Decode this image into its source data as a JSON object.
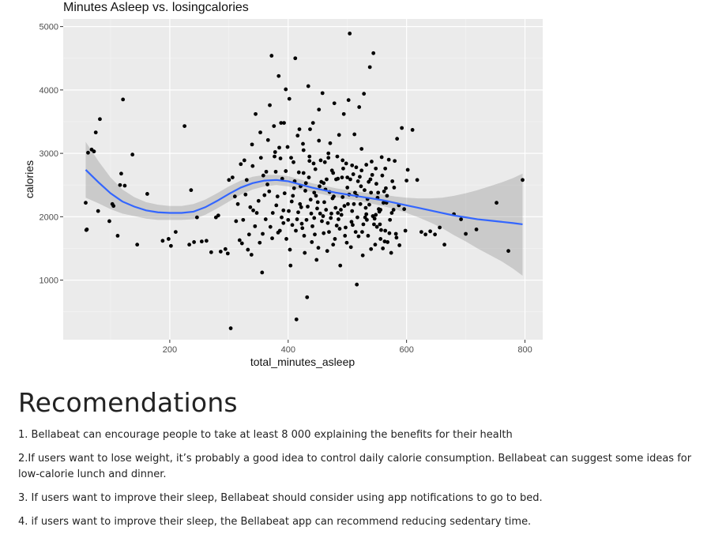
{
  "chart_data": {
    "type": "scatter",
    "title": "Minutes Asleep vs. losingcalories",
    "xlabel": "total_minutes_asleep",
    "ylabel": "calories",
    "xlim": [
      20,
      830
    ],
    "ylim": [
      60,
      5120
    ],
    "xticks": [
      200,
      400,
      600,
      800
    ],
    "yticks": [
      1000,
      2000,
      3000,
      4000,
      5000
    ],
    "grid": true,
    "background": "#ebebeb",
    "point_color": "#000000",
    "smooth_color": "#3366ff",
    "band_color": "#999999",
    "points": [
      [
        58,
        2220
      ],
      [
        59,
        1790
      ],
      [
        60,
        1800
      ],
      [
        62,
        3010
      ],
      [
        68,
        3060
      ],
      [
        72,
        3030
      ],
      [
        75,
        3330
      ],
      [
        79,
        2090
      ],
      [
        82,
        3540
      ],
      [
        98,
        1930
      ],
      [
        103,
        2200
      ],
      [
        105,
        2170
      ],
      [
        112,
        1700
      ],
      [
        116,
        2500
      ],
      [
        118,
        2680
      ],
      [
        121,
        3850
      ],
      [
        124,
        2490
      ],
      [
        137,
        2980
      ],
      [
        145,
        1560
      ],
      [
        162,
        2360
      ],
      [
        188,
        1620
      ],
      [
        198,
        1650
      ],
      [
        202,
        1540
      ],
      [
        210,
        1760
      ],
      [
        225,
        3430
      ],
      [
        233,
        1560
      ],
      [
        236,
        2420
      ],
      [
        241,
        1600
      ],
      [
        246,
        1990
      ],
      [
        254,
        1610
      ],
      [
        262,
        1620
      ],
      [
        270,
        1440
      ],
      [
        278,
        1990
      ],
      [
        282,
        2020
      ],
      [
        286,
        1450
      ],
      [
        294,
        1490
      ],
      [
        298,
        1420
      ],
      [
        300,
        2580
      ],
      [
        303,
        240
      ],
      [
        310,
        2320
      ],
      [
        318,
        1630
      ],
      [
        322,
        1580
      ],
      [
        326,
        2890
      ],
      [
        332,
        1480
      ],
      [
        334,
        1720
      ],
      [
        338,
        1400
      ],
      [
        341,
        2100
      ],
      [
        345,
        3620
      ],
      [
        352,
        1590
      ],
      [
        356,
        1120
      ],
      [
        360,
        2340
      ],
      [
        365,
        2510
      ],
      [
        369,
        3760
      ],
      [
        372,
        4540
      ],
      [
        376,
        3430
      ],
      [
        380,
        2180
      ],
      [
        384,
        4220
      ],
      [
        387,
        2920
      ],
      [
        390,
        2600
      ],
      [
        392,
        1900
      ],
      [
        396,
        4010
      ],
      [
        399,
        3100
      ],
      [
        401,
        2090
      ],
      [
        404,
        1230
      ],
      [
        407,
        1870
      ],
      [
        410,
        2450
      ],
      [
        412,
        4500
      ],
      [
        414,
        380
      ],
      [
        416,
        3280
      ],
      [
        418,
        2700
      ],
      [
        420,
        2200
      ],
      [
        423,
        1890
      ],
      [
        425,
        3150
      ],
      [
        428,
        1430
      ],
      [
        430,
        2530
      ],
      [
        432,
        730
      ],
      [
        434,
        4060
      ],
      [
        436,
        2950
      ],
      [
        438,
        2270
      ],
      [
        440,
        1600
      ],
      [
        442,
        3480
      ],
      [
        444,
        1980
      ],
      [
        446,
        2750
      ],
      [
        448,
        1320
      ],
      [
        450,
        2230
      ],
      [
        452,
        3690
      ],
      [
        454,
        2050
      ],
      [
        456,
        2550
      ],
      [
        458,
        3950
      ],
      [
        460,
        1740
      ],
      [
        462,
        2860
      ],
      [
        464,
        2110
      ],
      [
        466,
        1460
      ],
      [
        468,
        3000
      ],
      [
        470,
        2390
      ],
      [
        472,
        1980
      ],
      [
        474,
        2730
      ],
      [
        476,
        1560
      ],
      [
        478,
        3790
      ],
      [
        480,
        2140
      ],
      [
        482,
        1860
      ],
      [
        484,
        2600
      ],
      [
        486,
        3290
      ],
      [
        488,
        1230
      ],
      [
        490,
        2030
      ],
      [
        492,
        2310
      ],
      [
        494,
        3620
      ],
      [
        496,
        1700
      ],
      [
        498,
        2840
      ],
      [
        500,
        2460
      ],
      [
        502,
        3840
      ],
      [
        504,
        4890
      ],
      [
        506,
        1520
      ],
      [
        508,
        2090
      ],
      [
        510,
        2670
      ],
      [
        512,
        3300
      ],
      [
        514,
        1760
      ],
      [
        516,
        930
      ],
      [
        518,
        2560
      ],
      [
        520,
        3730
      ],
      [
        522,
        2200
      ],
      [
        524,
        3070
      ],
      [
        526,
        1390
      ],
      [
        528,
        3940
      ],
      [
        530,
        1990
      ],
      [
        532,
        2820
      ],
      [
        534,
        2280
      ],
      [
        536,
        2550
      ],
      [
        538,
        4360
      ],
      [
        540,
        1490
      ],
      [
        542,
        2660
      ],
      [
        544,
        4580
      ],
      [
        546,
        1970
      ],
      [
        548,
        2760
      ],
      [
        550,
        1840
      ],
      [
        552,
        2380
      ],
      [
        554,
        2080
      ],
      [
        556,
        1650
      ],
      [
        558,
        2940
      ],
      [
        560,
        1500
      ],
      [
        562,
        2400
      ],
      [
        564,
        1780
      ],
      [
        566,
        2220
      ],
      [
        568,
        1600
      ],
      [
        570,
        2900
      ],
      [
        572,
        1950
      ],
      [
        574,
        1430
      ],
      [
        576,
        2560
      ],
      [
        578,
        2110
      ],
      [
        580,
        2880
      ],
      [
        582,
        1730
      ],
      [
        584,
        3230
      ],
      [
        588,
        1550
      ],
      [
        592,
        3400
      ],
      [
        596,
        2120
      ],
      [
        598,
        1780
      ],
      [
        600,
        2570
      ],
      [
        602,
        2740
      ],
      [
        610,
        3370
      ],
      [
        618,
        2580
      ],
      [
        625,
        1760
      ],
      [
        632,
        1720
      ],
      [
        640,
        1770
      ],
      [
        648,
        1720
      ],
      [
        656,
        1830
      ],
      [
        664,
        1560
      ],
      [
        680,
        2040
      ],
      [
        692,
        1960
      ],
      [
        700,
        1730
      ],
      [
        718,
        1800
      ],
      [
        752,
        2220
      ],
      [
        772,
        1460
      ],
      [
        796,
        2580
      ],
      [
        340,
        2800
      ],
      [
        358,
        2650
      ],
      [
        370,
        1840
      ],
      [
        377,
        2950
      ],
      [
        383,
        1750
      ],
      [
        394,
        2370
      ],
      [
        403,
        1480
      ],
      [
        409,
        2860
      ],
      [
        415,
        1960
      ],
      [
        421,
        2480
      ],
      [
        427,
        1700
      ],
      [
        433,
        2160
      ],
      [
        437,
        3380
      ],
      [
        441,
        1850
      ],
      [
        447,
        2330
      ],
      [
        451,
        1510
      ],
      [
        455,
        2890
      ],
      [
        459,
        2010
      ],
      [
        463,
        2430
      ],
      [
        467,
        1900
      ],
      [
        471,
        3160
      ],
      [
        475,
        2290
      ],
      [
        479,
        1650
      ],
      [
        483,
        2950
      ],
      [
        487,
        1810
      ],
      [
        491,
        2620
      ],
      [
        495,
        2170
      ],
      [
        499,
        1590
      ],
      [
        503,
        2350
      ],
      [
        507,
        1920
      ],
      [
        511,
        2200
      ],
      [
        515,
        2780
      ],
      [
        519,
        1690
      ],
      [
        523,
        2480
      ],
      [
        527,
        1880
      ],
      [
        531,
        2140
      ],
      [
        535,
        1700
      ],
      [
        539,
        2590
      ],
      [
        543,
        2010
      ],
      [
        547,
        1560
      ],
      [
        551,
        2300
      ],
      [
        555,
        1880
      ],
      [
        559,
        2650
      ],
      [
        563,
        1610
      ],
      [
        567,
        2330
      ],
      [
        571,
        1740
      ],
      [
        575,
        2060
      ],
      [
        579,
        2460
      ],
      [
        583,
        1670
      ],
      [
        587,
        2180
      ],
      [
        315,
        2200
      ],
      [
        324,
        1950
      ],
      [
        330,
        2580
      ],
      [
        336,
        2150
      ],
      [
        344,
        1850
      ],
      [
        350,
        2250
      ],
      [
        354,
        2930
      ],
      [
        362,
        1960
      ],
      [
        368,
        2400
      ],
      [
        374,
        2060
      ],
      [
        378,
        3020
      ],
      [
        382,
        2320
      ],
      [
        386,
        1780
      ],
      [
        388,
        3480
      ],
      [
        392,
        2100
      ],
      [
        396,
        2720
      ],
      [
        400,
        1950
      ],
      [
        402,
        3860
      ],
      [
        406,
        2240
      ],
      [
        411,
        2560
      ],
      [
        413,
        1780
      ],
      [
        417,
        2070
      ],
      [
        419,
        3380
      ],
      [
        422,
        2150
      ],
      [
        424,
        1820
      ],
      [
        426,
        2690
      ],
      [
        429,
        2410
      ],
      [
        431,
        1950
      ],
      [
        435,
        2620
      ],
      [
        439,
        2050
      ],
      [
        443,
        2840
      ],
      [
        445,
        1720
      ],
      [
        449,
        2130
      ],
      [
        453,
        2480
      ],
      [
        457,
        1930
      ],
      [
        461,
        2230
      ],
      [
        465,
        2590
      ],
      [
        469,
        1760
      ],
      [
        473,
        2050
      ],
      [
        477,
        2320
      ],
      [
        481,
        2590
      ],
      [
        485,
        1960
      ],
      [
        489,
        2110
      ],
      [
        493,
        2760
      ],
      [
        497,
        1830
      ],
      [
        501,
        2200
      ],
      [
        505,
        2590
      ],
      [
        509,
        1870
      ],
      [
        513,
        2380
      ],
      [
        517,
        1990
      ],
      [
        521,
        2630
      ],
      [
        525,
        1760
      ],
      [
        529,
        2420
      ],
      [
        533,
        1950
      ],
      [
        537,
        2190
      ],
      [
        541,
        2870
      ],
      [
        545,
        1880
      ],
      [
        549,
        2520
      ],
      [
        553,
        2120
      ],
      [
        557,
        1790
      ],
      [
        561,
        2220
      ],
      [
        565,
        2450
      ],
      [
        306,
        2620
      ],
      [
        312,
        1930
      ],
      [
        320,
        2830
      ],
      [
        328,
        2350
      ],
      [
        339,
        3140
      ],
      [
        347,
        2060
      ],
      [
        353,
        3330
      ],
      [
        357,
        1730
      ],
      [
        363,
        2710
      ],
      [
        366,
        3210
      ],
      [
        373,
        1660
      ],
      [
        379,
        2710
      ],
      [
        385,
        3090
      ],
      [
        389,
        1990
      ],
      [
        393,
        3480
      ],
      [
        397,
        1650
      ],
      [
        405,
        2930
      ],
      [
        408,
        2330
      ],
      [
        426,
        3050
      ],
      [
        436,
        2880
      ],
      [
        444,
        2380
      ],
      [
        452,
        3200
      ],
      [
        460,
        2530
      ],
      [
        468,
        2930
      ],
      [
        476,
        2690
      ],
      [
        484,
        2060
      ],
      [
        492,
        2890
      ],
      [
        500,
        2620
      ],
      [
        508,
        2810
      ],
      [
        516,
        2330
      ],
      [
        524,
        2730
      ],
      [
        532,
        2040
      ],
      [
        540,
        2380
      ],
      [
        548,
        2030
      ],
      [
        556,
        2110
      ],
      [
        564,
        2760
      ]
    ],
    "smooth": [
      [
        58,
        2740
      ],
      [
        80,
        2540
      ],
      [
        100,
        2370
      ],
      [
        120,
        2240
      ],
      [
        140,
        2160
      ],
      [
        160,
        2100
      ],
      [
        180,
        2070
      ],
      [
        200,
        2060
      ],
      [
        220,
        2060
      ],
      [
        240,
        2080
      ],
      [
        260,
        2150
      ],
      [
        280,
        2250
      ],
      [
        300,
        2360
      ],
      [
        320,
        2460
      ],
      [
        340,
        2530
      ],
      [
        360,
        2570
      ],
      [
        380,
        2580
      ],
      [
        400,
        2560
      ],
      [
        420,
        2510
      ],
      [
        440,
        2460
      ],
      [
        460,
        2420
      ],
      [
        480,
        2380
      ],
      [
        500,
        2350
      ],
      [
        520,
        2320
      ],
      [
        540,
        2290
      ],
      [
        560,
        2260
      ],
      [
        580,
        2220
      ],
      [
        600,
        2180
      ],
      [
        620,
        2140
      ],
      [
        640,
        2100
      ],
      [
        660,
        2060
      ],
      [
        680,
        2020
      ],
      [
        700,
        1990
      ],
      [
        720,
        1960
      ],
      [
        740,
        1940
      ],
      [
        760,
        1920
      ],
      [
        780,
        1900
      ],
      [
        796,
        1880
      ]
    ],
    "band_upper": [
      [
        58,
        3180
      ],
      [
        80,
        2870
      ],
      [
        100,
        2620
      ],
      [
        120,
        2430
      ],
      [
        140,
        2310
      ],
      [
        160,
        2230
      ],
      [
        180,
        2190
      ],
      [
        200,
        2170
      ],
      [
        220,
        2170
      ],
      [
        240,
        2200
      ],
      [
        260,
        2270
      ],
      [
        280,
        2370
      ],
      [
        300,
        2480
      ],
      [
        320,
        2570
      ],
      [
        340,
        2630
      ],
      [
        360,
        2660
      ],
      [
        380,
        2660
      ],
      [
        400,
        2640
      ],
      [
        420,
        2590
      ],
      [
        440,
        2530
      ],
      [
        460,
        2490
      ],
      [
        480,
        2450
      ],
      [
        500,
        2420
      ],
      [
        520,
        2390
      ],
      [
        540,
        2370
      ],
      [
        560,
        2350
      ],
      [
        580,
        2320
      ],
      [
        600,
        2300
      ],
      [
        620,
        2290
      ],
      [
        640,
        2290
      ],
      [
        660,
        2300
      ],
      [
        680,
        2330
      ],
      [
        700,
        2370
      ],
      [
        720,
        2420
      ],
      [
        740,
        2480
      ],
      [
        760,
        2540
      ],
      [
        780,
        2610
      ],
      [
        796,
        2680
      ]
    ],
    "band_lower": [
      [
        58,
        2300
      ],
      [
        80,
        2210
      ],
      [
        100,
        2120
      ],
      [
        120,
        2050
      ],
      [
        140,
        2010
      ],
      [
        160,
        1970
      ],
      [
        180,
        1950
      ],
      [
        200,
        1950
      ],
      [
        220,
        1950
      ],
      [
        240,
        1960
      ],
      [
        260,
        2030
      ],
      [
        280,
        2130
      ],
      [
        300,
        2240
      ],
      [
        320,
        2350
      ],
      [
        340,
        2430
      ],
      [
        360,
        2480
      ],
      [
        380,
        2500
      ],
      [
        400,
        2480
      ],
      [
        420,
        2430
      ],
      [
        440,
        2390
      ],
      [
        460,
        2350
      ],
      [
        480,
        2310
      ],
      [
        500,
        2280
      ],
      [
        520,
        2250
      ],
      [
        540,
        2210
      ],
      [
        560,
        2170
      ],
      [
        580,
        2120
      ],
      [
        600,
        2060
      ],
      [
        620,
        1990
      ],
      [
        640,
        1910
      ],
      [
        660,
        1820
      ],
      [
        680,
        1710
      ],
      [
        700,
        1610
      ],
      [
        720,
        1500
      ],
      [
        740,
        1400
      ],
      [
        760,
        1300
      ],
      [
        780,
        1180
      ],
      [
        796,
        1070
      ]
    ]
  },
  "recommendations": {
    "heading": "Recomendations",
    "items": [
      "1. Bellabeat can encourage people to take at least 8 000 explaining the benefits for their health",
      "2.If users want to lose weight, it’s probably a good idea to control daily calorie consumption. Bellabeat can suggest some ideas for low-calorie lunch and dinner.",
      "3. If users want to improve their sleep, Bellabeat should consider using app notifications to go to bed.",
      "4. if users want to improve their sleep, the Bellabeat app can recommend reducing sedentary time."
    ]
  }
}
